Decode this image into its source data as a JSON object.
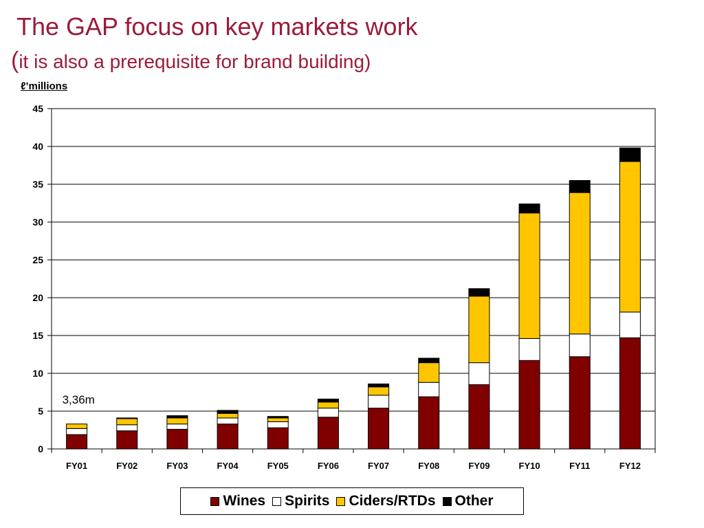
{
  "header": {
    "title": "The GAP focus on key markets work",
    "subtitle_paren_open": "(",
    "subtitle_text": "it is also a prerequisite for brand building)",
    "unit_label": "ℓ’millions"
  },
  "colors": {
    "title": "#9B1B3A",
    "wines": "#800000",
    "spirits": "#FFFFFF",
    "ciders": "#FFC600",
    "other": "#000000",
    "grid": "#000000"
  },
  "chart_data": {
    "type": "bar",
    "stacked": true,
    "categories": [
      "FY01",
      "FY02",
      "FY03",
      "FY04",
      "FY05",
      "FY06",
      "FY07",
      "FY08",
      "FY09",
      "FY10",
      "FY11",
      "FY12"
    ],
    "series": [
      {
        "name": "Wines",
        "color": "#800000",
        "values": [
          1.9,
          2.4,
          2.6,
          3.3,
          2.8,
          4.2,
          5.4,
          6.9,
          8.5,
          11.7,
          12.2,
          14.7
        ]
      },
      {
        "name": "Spirits",
        "color": "#FFFFFF",
        "values": [
          0.8,
          0.8,
          0.7,
          0.8,
          0.8,
          1.2,
          1.7,
          1.9,
          2.9,
          2.9,
          3.0,
          3.4
        ]
      },
      {
        "name": "Ciders/RTDs",
        "color": "#FFC600",
        "values": [
          0.6,
          0.8,
          0.8,
          0.6,
          0.5,
          0.8,
          1.1,
          2.6,
          8.8,
          16.6,
          18.7,
          19.9
        ]
      },
      {
        "name": "Other",
        "color": "#000000",
        "values": [
          0.0,
          0.1,
          0.3,
          0.4,
          0.2,
          0.4,
          0.4,
          0.6,
          1.0,
          1.2,
          1.6,
          1.8
        ]
      }
    ],
    "ylim": [
      0,
      45
    ],
    "yticks": [
      0,
      5,
      10,
      15,
      20,
      25,
      30,
      35,
      40,
      45
    ],
    "grid": true,
    "legend_position": "bottom",
    "annotations": [
      {
        "text": "3,36m",
        "category": "FY01"
      }
    ]
  }
}
